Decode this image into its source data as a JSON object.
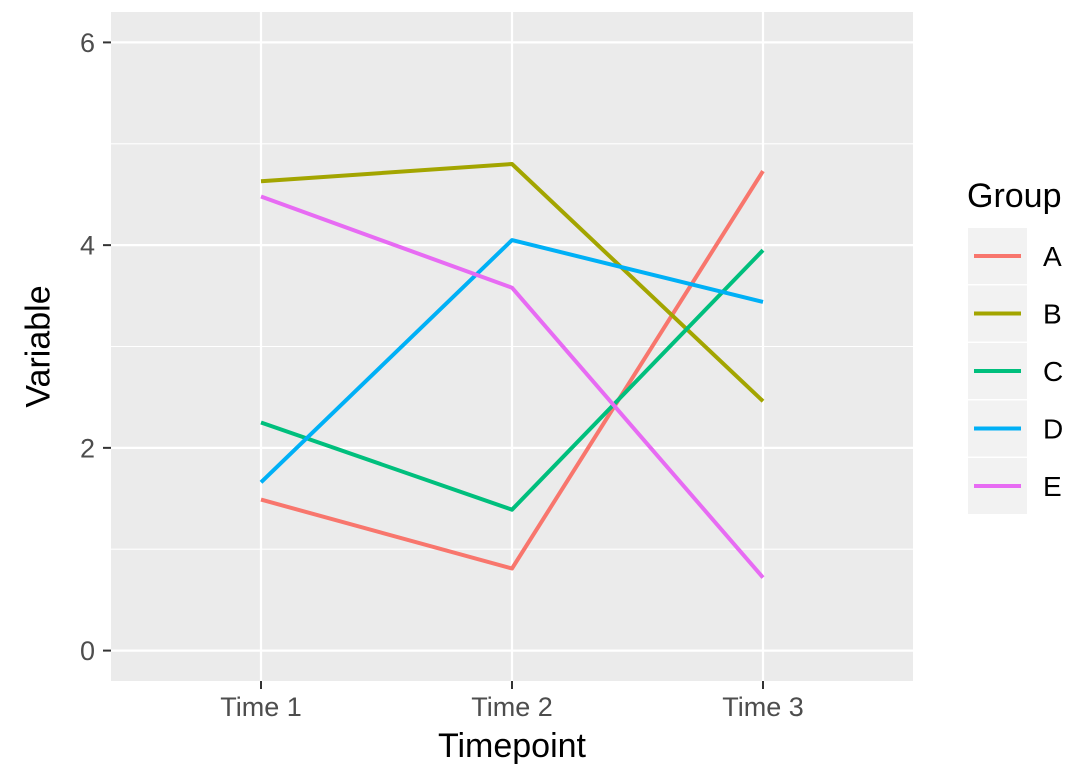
{
  "chart_data": {
    "type": "line",
    "title": "",
    "categories": [
      "Time 1",
      "Time 2",
      "Time 3"
    ],
    "series": [
      {
        "name": "A",
        "color": "#F8766D",
        "values": [
          1.49,
          0.81,
          4.73
        ]
      },
      {
        "name": "B",
        "color": "#A3A500",
        "values": [
          4.63,
          4.8,
          2.46
        ]
      },
      {
        "name": "C",
        "color": "#00BF7D",
        "values": [
          2.25,
          1.39,
          3.95
        ]
      },
      {
        "name": "D",
        "color": "#00B0F6",
        "values": [
          1.66,
          4.05,
          3.44
        ]
      },
      {
        "name": "E",
        "color": "#E76BF3",
        "values": [
          4.48,
          3.58,
          0.72
        ]
      }
    ],
    "xlabel": "Timepoint",
    "ylabel": "Variable",
    "y_ticks": [
      0,
      2,
      4,
      6
    ],
    "y_tick_labels": [
      "0",
      "2",
      "4",
      "6"
    ],
    "y_minor_ticks": [
      1,
      3,
      5
    ],
    "ylim": [
      -0.3,
      6.3
    ],
    "legend_title": "Group",
    "legend_position": "right",
    "grid": "major-horizontal, minor-horizontal, major-vertical-at-categories",
    "colors": {
      "panel_background": "#EBEBEB",
      "legend_key_background": "#F2F2F2",
      "gridline": "#FFFFFF",
      "tick_mark": "#333333",
      "tick_label": "#4D4D4D",
      "axis_title": "#000000",
      "page_background": "#FFFFFF"
    }
  }
}
